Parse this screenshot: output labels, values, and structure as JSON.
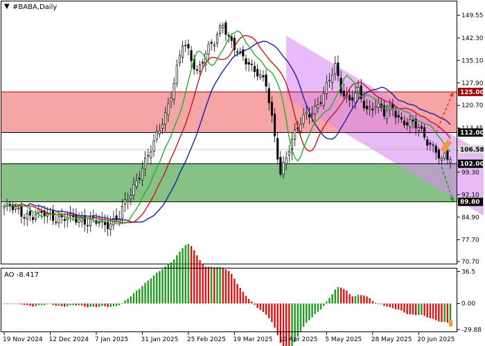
{
  "chart_data": {
    "type": "candlestick",
    "symbol_label": "#BABA,Daily",
    "indicator_label": "AO -8.417",
    "price_axis": {
      "range": [
        70.0,
        154.0
      ],
      "ticks": [
        "149.55",
        "142.30",
        "135.10",
        "127.90",
        "120.70",
        "113.45",
        "106.25",
        "99.30",
        "92.10",
        "84.90",
        "77.70",
        "70.70"
      ],
      "tick_values": [
        149.55,
        142.3,
        135.1,
        127.9,
        120.7,
        113.45,
        106.25,
        99.3,
        92.1,
        84.9,
        77.7,
        70.7
      ]
    },
    "ao_axis": {
      "range": [
        -32,
        40
      ],
      "ticks": [
        "36.5",
        "0.00",
        "-29.88"
      ],
      "tick_values": [
        36.5,
        0.0,
        -29.88
      ]
    },
    "x_axis": {
      "labels": [
        "19 Nov 2024",
        "12 Dec 2024",
        "7 Jan 2025",
        "31 Jan 2025",
        "25 Feb 2025",
        "19 Mar 2025",
        "10 Apr 2025",
        "5 May 2025",
        "28 May 2025",
        "20 Jun 2025"
      ],
      "label_bar_index": [
        0,
        16,
        32,
        48,
        64,
        80,
        96,
        112,
        128,
        144
      ]
    },
    "bar_count": 156,
    "levels": [
      {
        "label": "125.00",
        "value": 125.0,
        "color": "#a00000"
      },
      {
        "label": "112.00",
        "value": 112.0,
        "color": "#000000"
      },
      {
        "label": "106.58",
        "value": 106.58,
        "color": "#aaaaaa"
      },
      {
        "label": "102.00",
        "value": 102.0,
        "color": "#000000"
      },
      {
        "label": "89.80",
        "value": 89.8,
        "color": "#000000"
      }
    ],
    "zones": [
      {
        "name": "resistance",
        "from": 112.0,
        "to": 125.0,
        "color": "#f4a0a0"
      },
      {
        "name": "support",
        "from": 89.8,
        "to": 102.0,
        "color": "#7fbf7f"
      }
    ],
    "current_price": 106.58,
    "channel": {
      "upper_start": [
        98,
        143.0
      ],
      "upper_end": [
        156,
        108.0
      ],
      "lower_start": [
        98,
        123.0
      ],
      "lower_end": [
        156,
        88.0
      ],
      "color": "#d98cf0"
    },
    "scenarios": [
      {
        "direction": "up",
        "from": [
          150,
          112.0
        ],
        "to": [
          156,
          125.0
        ],
        "color": "#e03020"
      },
      {
        "direction": "down",
        "from": [
          152,
          101.0
        ],
        "to": [
          156,
          89.8
        ],
        "color": "#2a8a2a"
      }
    ],
    "anchors": [
      [
        0,
        88.5
      ],
      [
        6,
        86.5
      ],
      [
        10,
        85.2
      ],
      [
        15,
        86.0
      ],
      [
        20,
        84.3
      ],
      [
        26,
        84.5
      ],
      [
        32,
        83.0
      ],
      [
        35,
        82.3
      ],
      [
        40,
        85.5
      ],
      [
        44,
        92.0
      ],
      [
        48,
        101.5
      ],
      [
        52,
        108.0
      ],
      [
        56,
        118.0
      ],
      [
        59,
        128.5
      ],
      [
        62,
        140.0
      ],
      [
        64,
        137.5
      ],
      [
        67,
        132.0
      ],
      [
        70,
        137.5
      ],
      [
        73,
        140.5
      ],
      [
        76,
        147.5
      ],
      [
        79,
        141.0
      ],
      [
        82,
        136.0
      ],
      [
        85,
        134.0
      ],
      [
        88,
        132.0
      ],
      [
        91,
        127.0
      ],
      [
        94,
        110.0
      ],
      [
        96,
        99.5
      ],
      [
        99,
        107.5
      ],
      [
        102,
        113.0
      ],
      [
        105,
        118.0
      ],
      [
        108,
        120.0
      ],
      [
        111,
        123.5
      ],
      [
        113,
        128.5
      ],
      [
        115,
        133.5
      ],
      [
        117,
        126.5
      ],
      [
        120,
        122.0
      ],
      [
        123,
        124.5
      ],
      [
        126,
        119.5
      ],
      [
        129,
        121.5
      ],
      [
        132,
        117.5
      ],
      [
        135,
        120.0
      ],
      [
        138,
        116.0
      ],
      [
        141,
        114.5
      ],
      [
        144,
        113.5
      ],
      [
        147,
        110.0
      ],
      [
        150,
        106.0
      ],
      [
        152,
        102.0
      ],
      [
        153,
        104.0
      ]
    ]
  }
}
